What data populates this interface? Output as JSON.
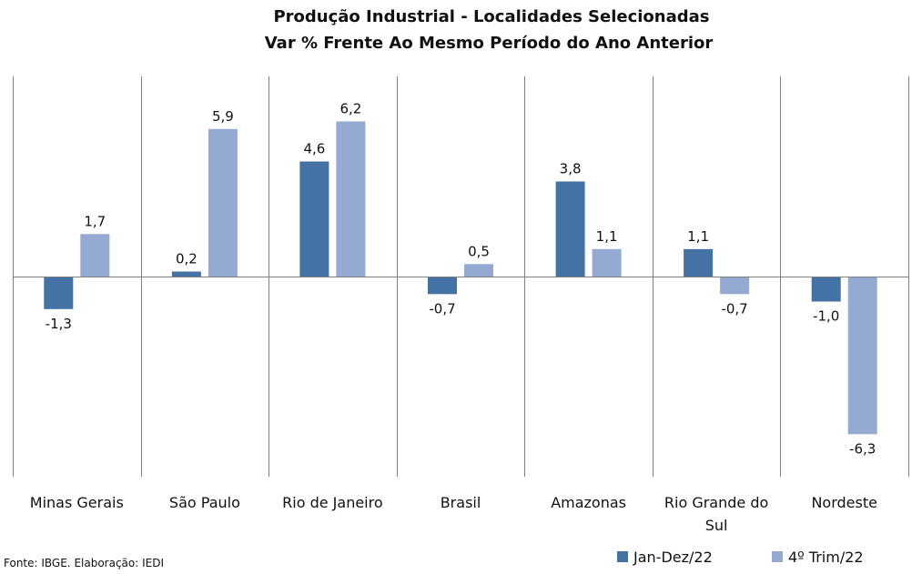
{
  "chart_data": {
    "type": "bar",
    "title_line1": "Produção Industrial - Localidades Selecionadas",
    "title_line2": "Var % Frente Ao Mesmo Período do Ano Anterior",
    "categories": [
      [
        "Minas Gerais"
      ],
      [
        "São Paulo"
      ],
      [
        "Rio de Janeiro"
      ],
      [
        "Brasil"
      ],
      [
        "Amazonas"
      ],
      [
        "Rio Grande do",
        "Sul"
      ],
      [
        "Nordeste"
      ]
    ],
    "series": [
      {
        "name": "Jan-Dez/22",
        "color": "#4472a4",
        "values": [
          -1.3,
          0.2,
          4.6,
          -0.7,
          3.8,
          1.1,
          -1.0
        ],
        "labels": [
          "-1,3",
          "0,2",
          "4,6",
          "-0,7",
          "3,8",
          "1,1",
          "-1,0"
        ]
      },
      {
        "name": "4º Trim/22",
        "color": "#95aad2",
        "values": [
          1.7,
          5.9,
          6.2,
          0.5,
          1.1,
          -0.7,
          -6.3
        ],
        "labels": [
          "1,7",
          "5,9",
          "6,2",
          "0,5",
          "1,1",
          "-0,7",
          "-6,3"
        ]
      }
    ],
    "ylim": [
      -8.0,
      8.0
    ],
    "grid": false,
    "category_separators": true,
    "legend_position": "bottom-right",
    "source": "Fonte: IBGE. Elaboração: IEDI"
  }
}
